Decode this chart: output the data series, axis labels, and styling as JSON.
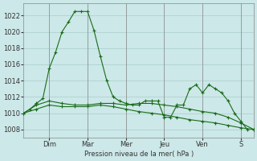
{
  "background_color": "#cce8e8",
  "grid_color": "#aacccc",
  "line_color": "#1a6b1a",
  "marker_color": "#1a6b1a",
  "xlabel": "Pression niveau de la mer( hPa )",
  "ylim": [
    1007,
    1023.5
  ],
  "yticks": [
    1008,
    1010,
    1012,
    1014,
    1016,
    1018,
    1020,
    1022
  ],
  "day_labels": [
    "Dim",
    "Mar",
    "Mer",
    "Jeu",
    "Ven",
    "S"
  ],
  "day_positions": [
    24,
    60,
    96,
    132,
    168,
    204
  ],
  "series1_x": [
    0,
    6,
    12,
    18,
    24,
    30,
    36,
    42,
    48,
    54,
    60,
    66,
    72,
    78,
    84,
    90,
    96,
    102,
    108,
    114,
    120,
    126,
    132,
    138,
    144,
    150,
    156,
    162,
    168,
    174,
    180,
    186,
    192,
    198,
    204,
    210
  ],
  "series1_y": [
    1010.0,
    1010.5,
    1011.2,
    1011.8,
    1015.5,
    1017.5,
    1020.0,
    1021.2,
    1022.5,
    1022.5,
    1022.5,
    1020.2,
    1017.0,
    1014.0,
    1012.0,
    1011.5,
    1011.2,
    1011.0,
    1011.0,
    1011.5,
    1011.5,
    1011.5,
    1009.5,
    1009.5,
    1011.0,
    1011.0,
    1013.0,
    1013.5,
    1012.5,
    1013.5,
    1013.0,
    1012.5,
    1011.5,
    1010.0,
    1009.0,
    1008.0
  ],
  "series2_x": [
    0,
    12,
    24,
    36,
    48,
    60,
    72,
    84,
    96,
    108,
    120,
    132,
    144,
    156,
    168,
    180,
    192,
    204,
    216
  ],
  "series2_y": [
    1010.0,
    1011.0,
    1011.5,
    1011.2,
    1011.0,
    1011.0,
    1011.2,
    1011.2,
    1011.0,
    1011.2,
    1011.2,
    1011.0,
    1010.8,
    1010.5,
    1010.2,
    1010.0,
    1009.5,
    1008.8,
    1008.0
  ],
  "series3_x": [
    0,
    12,
    24,
    36,
    48,
    60,
    72,
    84,
    96,
    108,
    120,
    132,
    144,
    156,
    168,
    180,
    192,
    204,
    216
  ],
  "series3_y": [
    1010.0,
    1010.5,
    1011.0,
    1010.8,
    1010.8,
    1010.8,
    1011.0,
    1010.8,
    1010.5,
    1010.2,
    1010.0,
    1009.8,
    1009.5,
    1009.2,
    1009.0,
    1008.8,
    1008.5,
    1008.2,
    1008.0
  ],
  "xlim": [
    0,
    216
  ],
  "yticklabelsize": 6,
  "xticklabelsize": 6,
  "title_color": "#1a6b1a"
}
